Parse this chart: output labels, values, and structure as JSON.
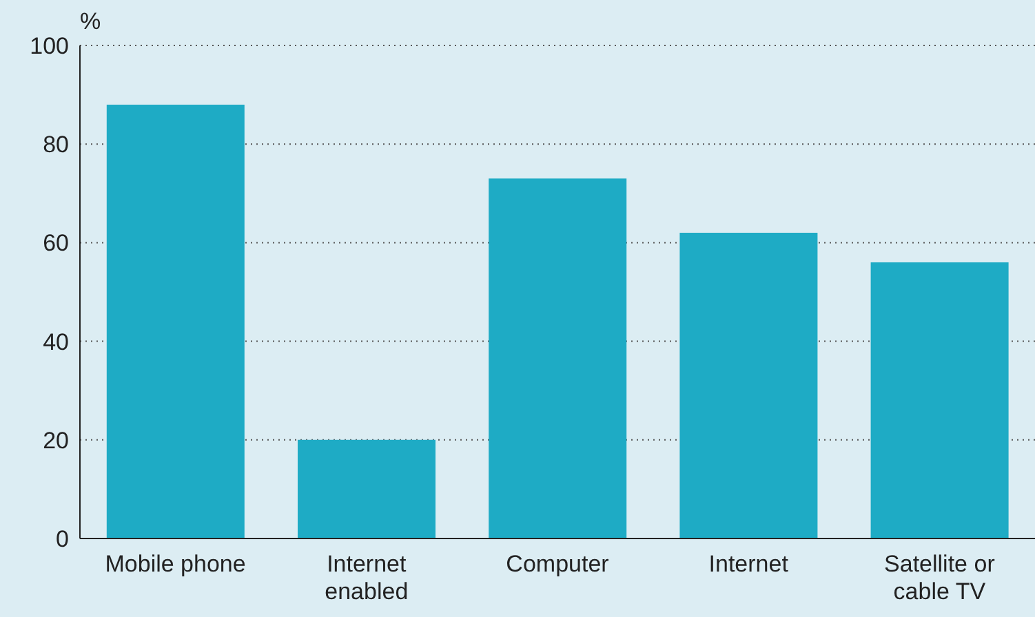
{
  "chart_data": {
    "type": "bar",
    "ylabel": "%",
    "categories": [
      "Mobile phone",
      "Internet enabled",
      "Computer",
      "Internet",
      "Satellite or cable TV"
    ],
    "values": [
      88,
      20,
      73,
      62,
      56
    ],
    "color": "#1eabc5",
    "ylim": [
      0,
      100
    ],
    "yticks": [
      0,
      20,
      40,
      60,
      80,
      100
    ],
    "grid": "y"
  }
}
